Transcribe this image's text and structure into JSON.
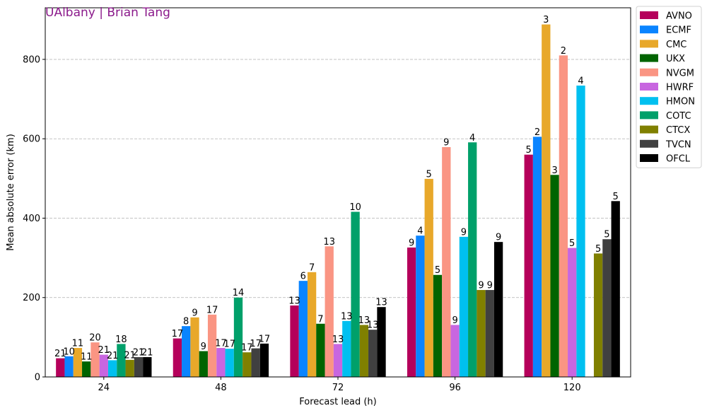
{
  "watermark": "UAlbany | Brian Tang",
  "colors": {
    "watermark": "#8b1a8b",
    "grid": "#b0b0b0"
  },
  "chart_data": {
    "type": "bar",
    "xlabel": "Forecast lead (h)",
    "ylabel": "Mean absolute error (km)",
    "ylim": [
      0,
      930
    ],
    "yticks": [
      0,
      200,
      400,
      600,
      800
    ],
    "grid": "y-dashed",
    "legend_position": "outside-right",
    "categories": [
      "24",
      "48",
      "72",
      "96",
      "120"
    ],
    "series": [
      {
        "name": "AVNO",
        "color": "#b5005b",
        "values": [
          47,
          97,
          180,
          326,
          560
        ],
        "counts": [
          "21",
          "17",
          "13",
          "9",
          "5"
        ]
      },
      {
        "name": "ECMF",
        "color": "#0a84ff",
        "values": [
          52,
          128,
          242,
          356,
          605
        ],
        "counts": [
          "10",
          "8",
          "6",
          "4",
          "2"
        ]
      },
      {
        "name": "CMC",
        "color": "#e8a82a",
        "values": [
          73,
          150,
          264,
          499,
          888
        ],
        "counts": [
          "11",
          "9",
          "7",
          "5",
          "3"
        ]
      },
      {
        "name": "UKX",
        "color": "#006400",
        "values": [
          39,
          65,
          134,
          257,
          509
        ],
        "counts": [
          "11",
          "9",
          "7",
          "5",
          "3"
        ]
      },
      {
        "name": "NVGM",
        "color": "#fa9583",
        "values": [
          87,
          157,
          329,
          579,
          810
        ],
        "counts": [
          "20",
          "17",
          "13",
          "9",
          "2"
        ]
      },
      {
        "name": "HWRF",
        "color": "#c866e0",
        "values": [
          56,
          73,
          83,
          131,
          325
        ],
        "counts": [
          "21",
          "17",
          "13",
          "9",
          "5"
        ]
      },
      {
        "name": "HMON",
        "color": "#00c0f0",
        "values": [
          42,
          71,
          141,
          353,
          734
        ],
        "counts": [
          "21",
          "17",
          "13",
          "9",
          "4"
        ]
      },
      {
        "name": "COTC",
        "color": "#00a06a",
        "values": [
          83,
          200,
          416,
          591,
          null
        ],
        "counts": [
          "18",
          "14",
          "10",
          "4",
          ""
        ]
      },
      {
        "name": "CTCX",
        "color": "#808000",
        "values": [
          43,
          62,
          131,
          219,
          311
        ],
        "counts": [
          "21",
          "17",
          "13",
          "9",
          "5"
        ]
      },
      {
        "name": "TVCN",
        "color": "#404040",
        "values": [
          50,
          72,
          119,
          219,
          347
        ],
        "counts": [
          "21",
          "17",
          "13",
          "9",
          "5"
        ]
      },
      {
        "name": "OFCL",
        "color": "#000000",
        "values": [
          50,
          84,
          176,
          340,
          443
        ],
        "counts": [
          "21",
          "17",
          "13",
          "9",
          "5"
        ]
      }
    ]
  }
}
